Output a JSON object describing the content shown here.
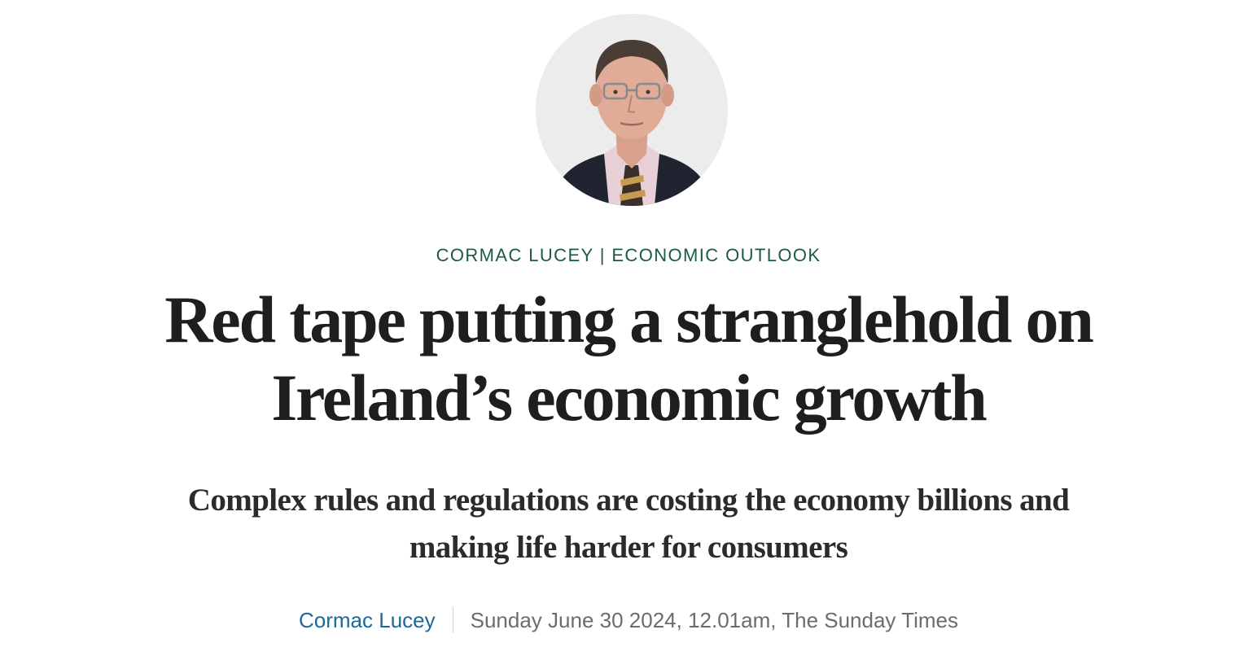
{
  "article": {
    "kicker": "CORMAC LUCEY | ECONOMIC OUTLOOK",
    "headline": {
      "line1": "Red tape putting a stranglehold on",
      "line2": "Ireland’s economic growth"
    },
    "standfirst": {
      "line1": "Complex rules and regulations are costing the economy billions and",
      "line2": "making life harder for consumers"
    },
    "byline": {
      "author": "Cormac Lucey",
      "dateline": "Sunday June 30 2024, 12.01am, The Sunday Times"
    }
  },
  "colors": {
    "kicker": "#1b5a46",
    "headline": "#1e1e1e",
    "author_link": "#1a6a9a",
    "dateline": "#6c6c6c",
    "photo_background": "#ececec"
  }
}
